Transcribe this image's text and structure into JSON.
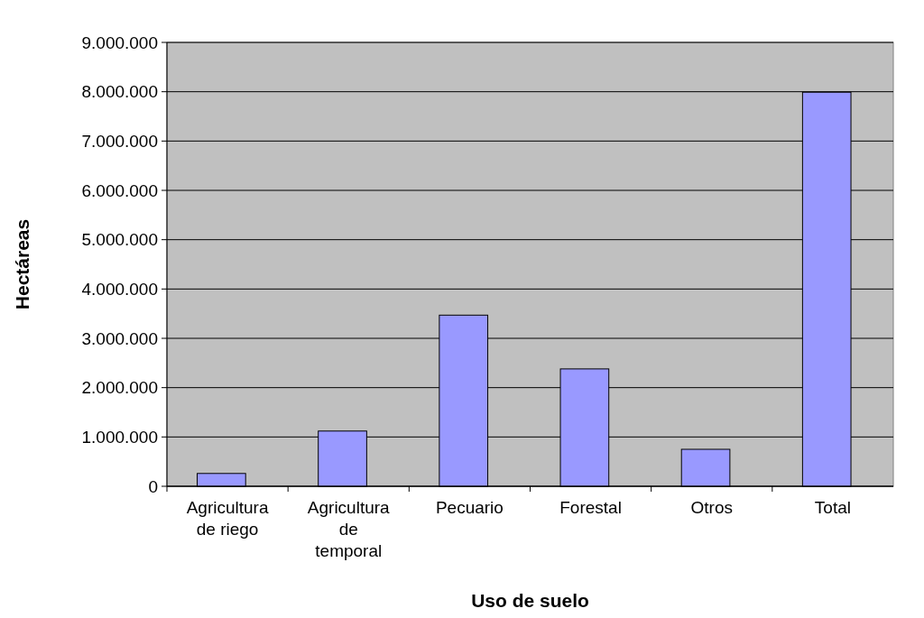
{
  "chart_data": {
    "type": "bar",
    "xlabel": "Uso de suelo",
    "ylabel": "Hectáreas",
    "categories": [
      "Agricultura de riego",
      "Agricultura de temporal",
      "Pecuario",
      "Forestal",
      "Otros",
      "Total"
    ],
    "values": [
      260000,
      1120000,
      3470000,
      2380000,
      750000,
      7990000
    ],
    "color": "#9999ff",
    "ylim": [
      0,
      9000000
    ],
    "yticks": [
      {
        "value": 0,
        "label": "0"
      },
      {
        "value": 1000000,
        "label": "1.000.000"
      },
      {
        "value": 2000000,
        "label": "2.000.000"
      },
      {
        "value": 3000000,
        "label": "3.000.000"
      },
      {
        "value": 4000000,
        "label": "4.000.000"
      },
      {
        "value": 5000000,
        "label": "5.000.000"
      },
      {
        "value": 6000000,
        "label": "6.000.000"
      },
      {
        "value": 7000000,
        "label": "7.000.000"
      },
      {
        "value": 8000000,
        "label": "8.000.000"
      },
      {
        "value": 9000000,
        "label": "9.000.000"
      }
    ],
    "grid": "y"
  }
}
